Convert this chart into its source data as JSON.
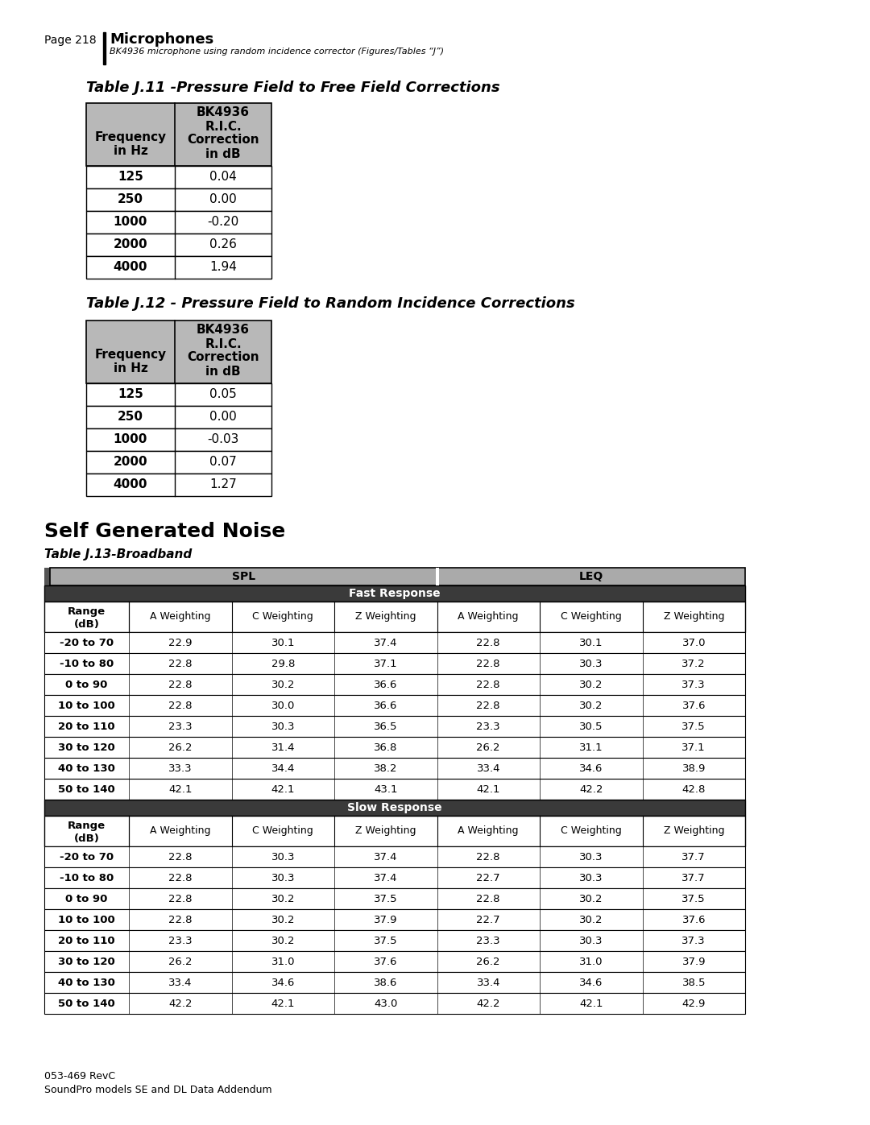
{
  "page_header": "Page 218",
  "page_title": "Microphones",
  "page_subtitle": "BK4936 microphone using random incidence corrector (Figures/Tables “J”)",
  "table1_title": "Table J.11 -Pressure Field to Free Field Corrections",
  "table2_title": "Table J.12 - Pressure Field to Random Incidence Corrections",
  "table1_data": [
    [
      "125",
      "0.04"
    ],
    [
      "250",
      "0.00"
    ],
    [
      "1000",
      "-0.20"
    ],
    [
      "2000",
      "0.26"
    ],
    [
      "4000",
      "1.94"
    ]
  ],
  "table2_data": [
    [
      "125",
      "0.05"
    ],
    [
      "250",
      "0.00"
    ],
    [
      "1000",
      "-0.03"
    ],
    [
      "2000",
      "0.07"
    ],
    [
      "4000",
      "1.27"
    ]
  ],
  "section_title": "Self Generated Noise",
  "table3_title": "Table J.13-Broadband",
  "table3_spl_header": "SPL",
  "table3_leq_header": "LEQ",
  "table3_fast_label": "Fast Response",
  "table3_slow_label": "Slow Response",
  "table3_col_headers": [
    "A Weighting",
    "C Weighting",
    "Z Weighting",
    "A Weighting",
    "C Weighting",
    "Z Weighting"
  ],
  "table3_fast_data": [
    [
      "-20 to 70",
      "22.9",
      "30.1",
      "37.4",
      "22.8",
      "30.1",
      "37.0"
    ],
    [
      "-10 to 80",
      "22.8",
      "29.8",
      "37.1",
      "22.8",
      "30.3",
      "37.2"
    ],
    [
      "0 to 90",
      "22.8",
      "30.2",
      "36.6",
      "22.8",
      "30.2",
      "37.3"
    ],
    [
      "10 to 100",
      "22.8",
      "30.0",
      "36.6",
      "22.8",
      "30.2",
      "37.6"
    ],
    [
      "20 to 110",
      "23.3",
      "30.3",
      "36.5",
      "23.3",
      "30.5",
      "37.5"
    ],
    [
      "30 to 120",
      "26.2",
      "31.4",
      "36.8",
      "26.2",
      "31.1",
      "37.1"
    ],
    [
      "40 to 130",
      "33.3",
      "34.4",
      "38.2",
      "33.4",
      "34.6",
      "38.9"
    ],
    [
      "50 to 140",
      "42.1",
      "42.1",
      "43.1",
      "42.1",
      "42.2",
      "42.8"
    ]
  ],
  "table3_slow_data": [
    [
      "-20 to 70",
      "22.8",
      "30.3",
      "37.4",
      "22.8",
      "30.3",
      "37.7"
    ],
    [
      "-10 to 80",
      "22.8",
      "30.3",
      "37.4",
      "22.7",
      "30.3",
      "37.7"
    ],
    [
      "0 to 90",
      "22.8",
      "30.2",
      "37.5",
      "22.8",
      "30.2",
      "37.5"
    ],
    [
      "10 to 100",
      "22.8",
      "30.2",
      "37.9",
      "22.7",
      "30.2",
      "37.6"
    ],
    [
      "20 to 110",
      "23.3",
      "30.2",
      "37.5",
      "23.3",
      "30.3",
      "37.3"
    ],
    [
      "30 to 120",
      "26.2",
      "31.0",
      "37.6",
      "26.2",
      "31.0",
      "37.9"
    ],
    [
      "40 to 130",
      "33.4",
      "34.6",
      "38.6",
      "33.4",
      "34.6",
      "38.5"
    ],
    [
      "50 to 140",
      "42.2",
      "42.1",
      "43.0",
      "42.2",
      "42.1",
      "42.9"
    ]
  ],
  "footer_line1": "053-469 RevC",
  "footer_line2": "SoundPro models SE and DL Data Addendum"
}
